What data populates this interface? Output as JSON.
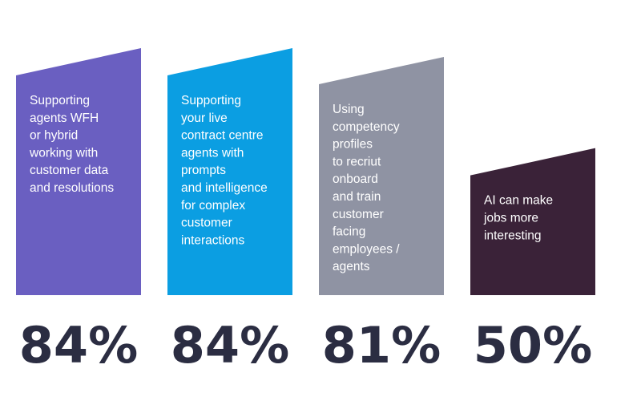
{
  "chart_data": {
    "type": "bar",
    "title": "",
    "xlabel": "",
    "ylabel": "",
    "ylim": [
      0,
      100
    ],
    "grid": false,
    "categories": [
      "Supporting agents WFH or hybrid working with customer data and resolutions",
      "Supporting your live contract centre agents with prompts and intelligence for complex customer interactions",
      "Using competency profiles to recriut onboard and train customer facing employees / agents",
      "AI can make jobs more interesting"
    ],
    "category_lines": [
      [
        "Supporting",
        "agents WFH",
        "or hybrid",
        "working with",
        "customer data",
        "and resolutions"
      ],
      [
        "Supporting",
        "your live",
        "contract centre",
        "agents with",
        "prompts",
        "and intelligence",
        "for complex",
        "customer",
        "interactions"
      ],
      [
        "Using",
        "competency",
        "profiles",
        "to recriut",
        "onboard",
        "and train",
        "customer",
        "facing",
        "employees /",
        "agents"
      ],
      [
        "AI can make",
        "jobs more",
        "interesting"
      ]
    ],
    "values": [
      84,
      84,
      81,
      50
    ],
    "value_labels": [
      "84%",
      "84%",
      "81%",
      "50%"
    ],
    "colors": [
      "#6a5fc1",
      "#0b9ee2",
      "#8f93a3",
      "#3a2238"
    ]
  }
}
